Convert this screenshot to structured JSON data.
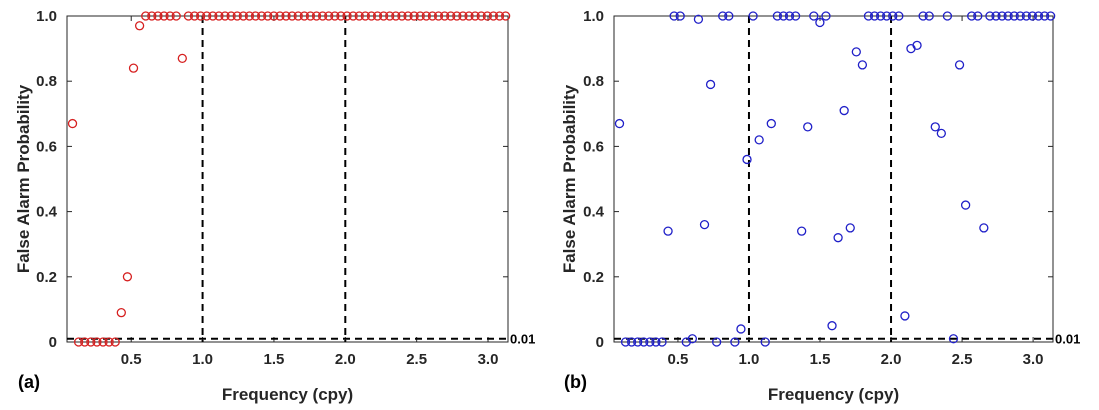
{
  "chart_data": [
    {
      "type": "scatter",
      "panel_label": "(a)",
      "xlabel": "Frequency (cpy)",
      "ylabel": "False Alarm Probability",
      "xlim": [
        0.05,
        3.14
      ],
      "ylim": [
        0,
        1
      ],
      "xticks": [
        "0.5",
        "1.0",
        "1.5",
        "2.0",
        "2.5",
        "3.0"
      ],
      "yticks": [
        "0",
        "0.2",
        "0.4",
        "0.6",
        "0.8",
        "1.0"
      ],
      "marker": "circle-open",
      "color": "#d62020",
      "ref_label": "0.01",
      "threshold": 0.01,
      "vlines": [
        1.0,
        2.0
      ],
      "x": [
        0.0887,
        0.1314,
        0.1741,
        0.2169,
        0.2596,
        0.3024,
        0.3451,
        0.3879,
        0.4306,
        0.4733,
        0.5161,
        0.5588,
        0.6016,
        0.6443,
        0.6871,
        0.7298,
        0.7725,
        0.8153,
        0.858,
        0.9008,
        0.9435,
        0.9863,
        1.029,
        1.0717,
        1.1145,
        1.1572,
        1.2,
        1.2427,
        1.2855,
        1.3282,
        1.3709,
        1.4137,
        1.4564,
        1.4992,
        1.5419,
        1.5847,
        1.6274,
        1.6701,
        1.7129,
        1.7556,
        1.7984,
        1.8411,
        1.8839,
        1.9266,
        1.9693,
        2.0121,
        2.0548,
        2.0976,
        2.1403,
        2.1831,
        2.2258,
        2.2685,
        2.3113,
        2.354,
        2.3968,
        2.4395,
        2.4823,
        2.525,
        2.5677,
        2.6105,
        2.6532,
        2.696,
        2.7387,
        2.7815,
        2.8242,
        2.8669,
        2.9097,
        2.9524,
        2.9952,
        3.0379,
        3.0807,
        3.1234
      ],
      "y": [
        0.67,
        0,
        0,
        0,
        0,
        0,
        0,
        0,
        0.09,
        0.2,
        0.84,
        0.97,
        1,
        1,
        1,
        1,
        1,
        1,
        0.87,
        1,
        1,
        1,
        1,
        1,
        1,
        1,
        1,
        1,
        1,
        1,
        1,
        1,
        1,
        1,
        1,
        1,
        1,
        1,
        1,
        1,
        1,
        1,
        1,
        1,
        1,
        1,
        1,
        1,
        1,
        1,
        1,
        1,
        1,
        1,
        1,
        1,
        1,
        1,
        1,
        1,
        1,
        1,
        1,
        1,
        1,
        1,
        1,
        1,
        1,
        1,
        1,
        1
      ]
    },
    {
      "type": "scatter",
      "panel_label": "(b)",
      "xlabel": "Frequency (cpy)",
      "ylabel": "False Alarm Probability",
      "xlim": [
        0.05,
        3.14
      ],
      "ylim": [
        0,
        1
      ],
      "xticks": [
        "0.5",
        "1.0",
        "1.5",
        "2.0",
        "2.5",
        "3.0"
      ],
      "yticks": [
        "0",
        "0.2",
        "0.4",
        "0.6",
        "0.8",
        "1.0"
      ],
      "marker": "circle-open",
      "color": "#1f1fc8",
      "ref_label": "0.01",
      "threshold": 0.01,
      "vlines": [
        1.0,
        2.0
      ],
      "x": [
        0.0887,
        0.1314,
        0.1741,
        0.2169,
        0.2596,
        0.3024,
        0.3451,
        0.3879,
        0.4306,
        0.4733,
        0.5161,
        0.5588,
        0.6016,
        0.6443,
        0.6871,
        0.7298,
        0.7725,
        0.8153,
        0.858,
        0.9008,
        0.9435,
        0.9863,
        1.029,
        1.0717,
        1.1145,
        1.1572,
        1.2,
        1.2427,
        1.2855,
        1.3282,
        1.3709,
        1.4137,
        1.4564,
        1.4992,
        1.5419,
        1.5847,
        1.6274,
        1.6701,
        1.7129,
        1.7556,
        1.7984,
        1.8411,
        1.8839,
        1.9266,
        1.9693,
        2.0121,
        2.0548,
        2.0976,
        2.1403,
        2.1831,
        2.2258,
        2.2685,
        2.3113,
        2.354,
        2.3968,
        2.4395,
        2.4823,
        2.525,
        2.5677,
        2.6105,
        2.6532,
        2.696,
        2.7387,
        2.7815,
        2.8242,
        2.8669,
        2.9097,
        2.9524,
        2.9952,
        3.0379,
        3.0807,
        3.1234
      ],
      "y": [
        0.67,
        0,
        0,
        0,
        0,
        0,
        0,
        0,
        0.34,
        1,
        1,
        0,
        0.01,
        0.99,
        0.36,
        0.79,
        0,
        1,
        1,
        0,
        0.04,
        0.56,
        1,
        0.62,
        0,
        0.67,
        1,
        1,
        1,
        1,
        0.34,
        0.66,
        1,
        0.98,
        1,
        0.05,
        0.32,
        0.71,
        0.35,
        0.89,
        0.85,
        1,
        1,
        1,
        1,
        1,
        1,
        0.08,
        0.9,
        0.91,
        1,
        1,
        0.66,
        0.64,
        1,
        0.01,
        0.85,
        0.42,
        1,
        1,
        0.35,
        1,
        1,
        1,
        1,
        1,
        1,
        1,
        1,
        1,
        1,
        1
      ]
    }
  ]
}
